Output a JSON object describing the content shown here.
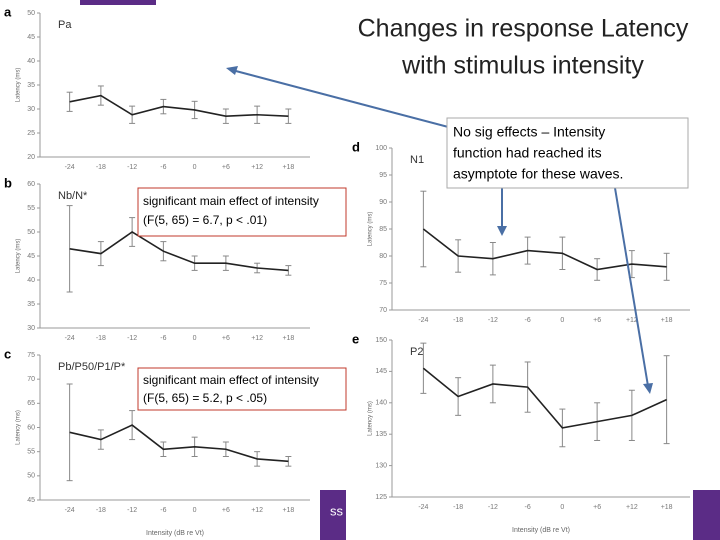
{
  "slide": {
    "title": [
      "Changes in response Latency",
      "with stimulus intensity"
    ],
    "note": [
      "No sig effects – Intensity",
      "function had reached its",
      "asymptote for these waves."
    ],
    "effects": [
      [
        "significant main effect of intensity",
        "(F(5, 65) = 6.7, p < .01)"
      ],
      [
        "significant main effect of intensity",
        "(F(5, 65) = 5.2, p < .05)"
      ]
    ],
    "footer": "ss"
  },
  "chart_data": [
    {
      "type": "line",
      "panel": "a",
      "title": "Pa",
      "ylabel": "Latency (ms)",
      "categories": [
        "-24",
        "-18",
        "-12",
        "-6",
        "0",
        "+6",
        "+12",
        "+18"
      ],
      "values": [
        31.5,
        32.8,
        28.8,
        30.5,
        29.8,
        28.5,
        28.8,
        28.5
      ],
      "errors": [
        2,
        2,
        1.8,
        1.5,
        1.8,
        1.5,
        1.8,
        1.5
      ],
      "ylim": [
        20,
        50
      ],
      "yticks": [
        20,
        25,
        30,
        35,
        40,
        45,
        50
      ],
      "color": "#222222"
    },
    {
      "type": "line",
      "panel": "b",
      "title": "Nb/N*",
      "ylabel": "Latency (ms)",
      "categories": [
        "-24",
        "-18",
        "-12",
        "-6",
        "0",
        "+6",
        "+12",
        "+18"
      ],
      "values": [
        46.5,
        45.5,
        50,
        46,
        43.5,
        43.5,
        42.5,
        42
      ],
      "errors": [
        9,
        2.5,
        3,
        2,
        1.5,
        1.5,
        1,
        1
      ],
      "ylim": [
        30,
        60
      ],
      "yticks": [
        30,
        35,
        40,
        45,
        50,
        55,
        60
      ],
      "color": "#222222"
    },
    {
      "type": "line",
      "panel": "c",
      "title": "Pb/P50/P1/P*",
      "ylabel": "Latency (ms)",
      "xlabel": "Intensity (dB re Vt)",
      "categories": [
        "-24",
        "-18",
        "-12",
        "-6",
        "0",
        "+6",
        "+12",
        "+18"
      ],
      "values": [
        59,
        57.5,
        60.5,
        55.5,
        56,
        55.5,
        53.5,
        53
      ],
      "errors": [
        10,
        2,
        3,
        1.5,
        2,
        1.5,
        1.5,
        1
      ],
      "ylim": [
        45,
        75
      ],
      "yticks": [
        45,
        50,
        55,
        60,
        65,
        70,
        75
      ],
      "color": "#222222"
    },
    {
      "type": "line",
      "panel": "d",
      "title": "N1",
      "ylabel": "Latency (ms)",
      "categories": [
        "-24",
        "-18",
        "-12",
        "-6",
        "0",
        "+6",
        "+12",
        "+18"
      ],
      "values": [
        85,
        80,
        79.5,
        81,
        80.5,
        77.5,
        78.5,
        78
      ],
      "errors": [
        7,
        3,
        3,
        2.5,
        3,
        2,
        2.5,
        2.5
      ],
      "ylim": [
        70,
        100
      ],
      "yticks": [
        70,
        75,
        80,
        85,
        90,
        95,
        100
      ],
      "color": "#222222"
    },
    {
      "type": "line",
      "panel": "e",
      "title": "P2",
      "ylabel": "Latency (ms)",
      "xlabel": "Intensity (dB re Vt)",
      "categories": [
        "-24",
        "-18",
        "-12",
        "-6",
        "0",
        "+6",
        "+12",
        "+18"
      ],
      "values": [
        145.5,
        141,
        143,
        142.5,
        136,
        137,
        138,
        140.5
      ],
      "errors": [
        4,
        3,
        3,
        4,
        3,
        3,
        4,
        7
      ],
      "ylim": [
        125,
        150
      ],
      "yticks": [
        125,
        130,
        135,
        140,
        145,
        150
      ],
      "color": "#222222"
    }
  ]
}
